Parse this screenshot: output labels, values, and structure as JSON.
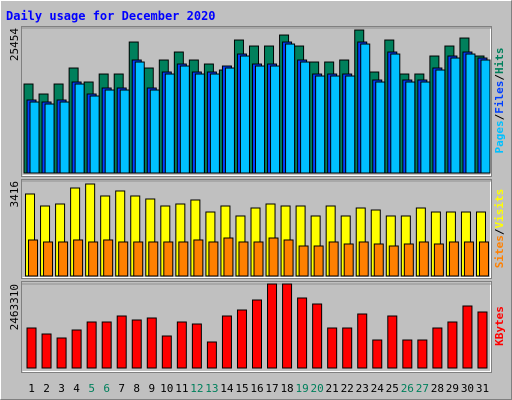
{
  "chart_data": [
    {
      "type": "bar",
      "title": "Daily usage for December 2020",
      "ylim": [
        0,
        25454
      ],
      "yticks": [
        25454
      ],
      "legend_separator": "/",
      "series": [
        {
          "name": "Hits",
          "color": "#00805c",
          "values": [
            15620,
            13865,
            15620,
            18428,
            15971,
            17375,
            17375,
            22991,
            18428,
            19832,
            21236,
            19832,
            19130,
            18077,
            23342,
            22289,
            22289,
            24219,
            22289,
            19481,
            19481,
            19832,
            25097,
            17726,
            23342,
            17375,
            17375,
            20534,
            22289,
            23693,
            20534
          ]
        },
        {
          "name": "Files",
          "color": "#0040ff",
          "values": [
            12812,
            12461,
            12812,
            15971,
            13865,
            14918,
            14918,
            19832,
            14918,
            17726,
            19130,
            17726,
            17726,
            18779,
            20885,
            19130,
            19130,
            22991,
            19832,
            17375,
            17375,
            17375,
            22991,
            16322,
            21236,
            16322,
            16322,
            18428,
            20534,
            21236,
            20183
          ]
        },
        {
          "name": "Pages",
          "color": "#00c0ff",
          "values": [
            12461,
            12110,
            12461,
            15620,
            13514,
            14567,
            14567,
            19481,
            14567,
            17375,
            18779,
            17375,
            17375,
            18428,
            20534,
            18779,
            18779,
            22640,
            19481,
            17024,
            17024,
            17024,
            22640,
            15971,
            20885,
            15971,
            15971,
            18077,
            20183,
            20885,
            19832
          ]
        }
      ]
    },
    {
      "type": "bar",
      "ylim": [
        0,
        3416
      ],
      "yticks": [
        3416
      ],
      "legend_separator": "/",
      "series": [
        {
          "name": "Visits",
          "color": "#ffff00",
          "values": [
            2949,
            2517,
            2589,
            3164,
            3308,
            2877,
            3057,
            2877,
            2769,
            2517,
            2589,
            2733,
            2301,
            2517,
            2158,
            2445,
            2589,
            2517,
            2517,
            2158,
            2517,
            2158,
            2445,
            2373,
            2158,
            2158,
            2445,
            2301,
            2301,
            2301,
            2301
          ]
        },
        {
          "name": "Sites",
          "color": "#ff8000",
          "values": [
            1295,
            1223,
            1223,
            1295,
            1223,
            1295,
            1223,
            1223,
            1223,
            1223,
            1223,
            1295,
            1223,
            1366,
            1223,
            1223,
            1366,
            1295,
            1079,
            1079,
            1223,
            1151,
            1223,
            1151,
            1079,
            1151,
            1223,
            1151,
            1223,
            1223,
            1223
          ]
        }
      ]
    },
    {
      "type": "bar",
      "ylim": [
        0,
        2463310
      ],
      "yticks": [
        2463310
      ],
      "categories": [
        "1",
        "2",
        "3",
        "4",
        "5",
        "6",
        "7",
        "8",
        "9",
        "10",
        "11",
        "12",
        "13",
        "14",
        "15",
        "16",
        "17",
        "18",
        "19",
        "20",
        "21",
        "22",
        "23",
        "24",
        "25",
        "26",
        "27",
        "28",
        "29",
        "30",
        "31"
      ],
      "category_colors": [
        "#000000",
        "#000000",
        "#000000",
        "#000000",
        "#00805c",
        "#00805c",
        "#000000",
        "#000000",
        "#000000",
        "#000000",
        "#000000",
        "#00805c",
        "#00805c",
        "#000000",
        "#000000",
        "#000000",
        "#000000",
        "#000000",
        "#00805c",
        "#00805c",
        "#000000",
        "#000000",
        "#000000",
        "#000000",
        "#000000",
        "#00805c",
        "#00805c",
        "#000000",
        "#000000",
        "#000000",
        "#000000"
      ],
      "series": [
        {
          "name": "KBytes",
          "color": "#ff0000",
          "values": [
            1173000,
            997050,
            879750,
            1114350,
            1348950,
            1348950,
            1524900,
            1407600,
            1466250,
            938400,
            1348950,
            1290300,
            762450,
            1524900,
            1700850,
            1994100,
            2463300,
            2463300,
            2052750,
            1876800,
            1173000,
            1173000,
            1583550,
            821100,
            1524900,
            821100,
            821100,
            1173000,
            1348950,
            1818150,
            1642200
          ]
        }
      ]
    }
  ]
}
